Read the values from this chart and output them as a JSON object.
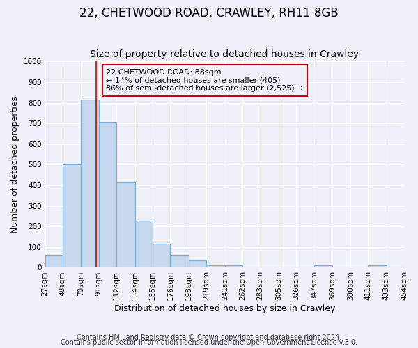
{
  "title": "22, CHETWOOD ROAD, CRAWLEY, RH11 8GB",
  "subtitle": "Size of property relative to detached houses in Crawley",
  "xlabel": "Distribution of detached houses by size in Crawley",
  "ylabel": "Number of detached properties",
  "bin_edges": [
    27,
    48,
    70,
    91,
    112,
    134,
    155,
    176,
    198,
    219,
    241,
    262,
    283,
    305,
    326,
    347,
    369,
    390,
    411,
    433,
    454
  ],
  "bar_heights": [
    60,
    500,
    815,
    705,
    415,
    228,
    118,
    58,
    35,
    12,
    10,
    0,
    2,
    0,
    0,
    10,
    0,
    0,
    10,
    0
  ],
  "bar_color": "#c5d8ed",
  "bar_edge_color": "#7aaed4",
  "vline_x": 88,
  "vline_color": "#cc0000",
  "annotation_line1": "22 CHETWOOD ROAD: 88sqm",
  "annotation_line2": "← 14% of detached houses are smaller (405)",
  "annotation_line3": "86% of semi-detached houses are larger (2,525) →",
  "annotation_box_color": "#cc0000",
  "ylim": [
    0,
    1000
  ],
  "yticks": [
    0,
    100,
    200,
    300,
    400,
    500,
    600,
    700,
    800,
    900,
    1000
  ],
  "xtick_labels": [
    "27sqm",
    "48sqm",
    "70sqm",
    "91sqm",
    "112sqm",
    "134sqm",
    "155sqm",
    "176sqm",
    "198sqm",
    "219sqm",
    "241sqm",
    "262sqm",
    "283sqm",
    "305sqm",
    "326sqm",
    "347sqm",
    "369sqm",
    "390sqm",
    "411sqm",
    "433sqm",
    "454sqm"
  ],
  "footer_text1": "Contains HM Land Registry data © Crown copyright and database right 2024.",
  "footer_text2": "Contains public sector information licensed under the Open Government Licence v.3.0.",
  "background_color": "#eef2f8",
  "grid_color": "#ffffff",
  "title_fontsize": 12,
  "subtitle_fontsize": 10,
  "axis_label_fontsize": 9,
  "tick_fontsize": 7.5,
  "footer_fontsize": 7
}
